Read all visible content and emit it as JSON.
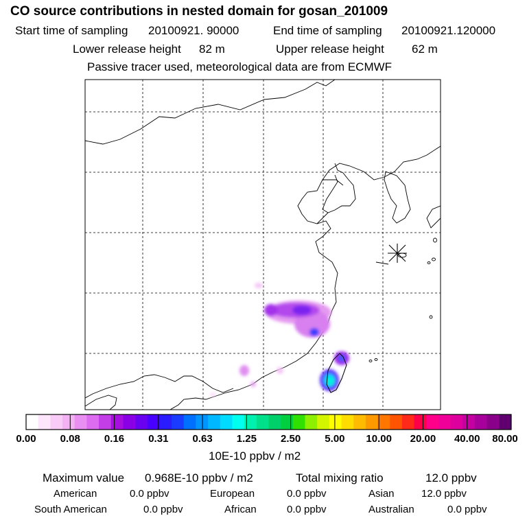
{
  "header": {
    "title": "CO  source contributions in nested domain for gosan_201009",
    "start_label": "Start time of sampling",
    "start_value": "20100921. 90000",
    "end_label": "End time of sampling",
    "end_value": "20100921.120000",
    "lower_label": "Lower release height",
    "lower_value": "82 m",
    "upper_label": "Upper release height",
    "upper_value": "62 m",
    "tracer_note": "Passive tracer used, meteorological data are from ECMWF"
  },
  "colorbar": {
    "labels": [
      "0.00",
      "0.08",
      "0.16",
      "0.31",
      "0.63",
      "1.25",
      "2.50",
      "5.00",
      "10.00",
      "20.00",
      "40.00",
      "80.00"
    ],
    "unit": "10E-10 ppbv / m2",
    "colors": [
      "#ffffff",
      "#fde6fb",
      "#f9ccf7",
      "#f4b2f4",
      "#e98ff2",
      "#dd6cf0",
      "#c43ee8",
      "#a70fe0",
      "#8a00e6",
      "#6a00f0",
      "#4800ff",
      "#2b1cff",
      "#1a3cff",
      "#0070ff",
      "#0094ff",
      "#00b8ff",
      "#00dcff",
      "#00ffee",
      "#00f0b0",
      "#00e08a",
      "#00d06a",
      "#00d040",
      "#30e000",
      "#8cf000",
      "#d4f500",
      "#ffff00",
      "#ffdd00",
      "#ffbb00",
      "#ff9900",
      "#ff7700",
      "#ff5500",
      "#ff2a1a",
      "#ff0048",
      "#ff008a",
      "#f00098",
      "#dd009e",
      "#c400a0",
      "#a8009a",
      "#8a008a",
      "#600070"
    ]
  },
  "summary": {
    "max_label": "Maximum value",
    "max_value": "0.968E-10 ppbv / m2",
    "total_label": "Total mixing ratio",
    "total_value": "12.0 ppbv",
    "regions": [
      {
        "name": "American",
        "value": "0.0 ppbv"
      },
      {
        "name": "European",
        "value": "0.0 ppbv"
      },
      {
        "name": "Asian",
        "value": "12.0 ppbv"
      },
      {
        "name": "South American",
        "value": "0.0 ppbv"
      },
      {
        "name": "African",
        "value": "0.0 ppbv"
      },
      {
        "name": "Australian",
        "value": "0.0 ppbv"
      }
    ]
  },
  "receptor": {
    "name": "gosan",
    "marker": "star-marker"
  }
}
